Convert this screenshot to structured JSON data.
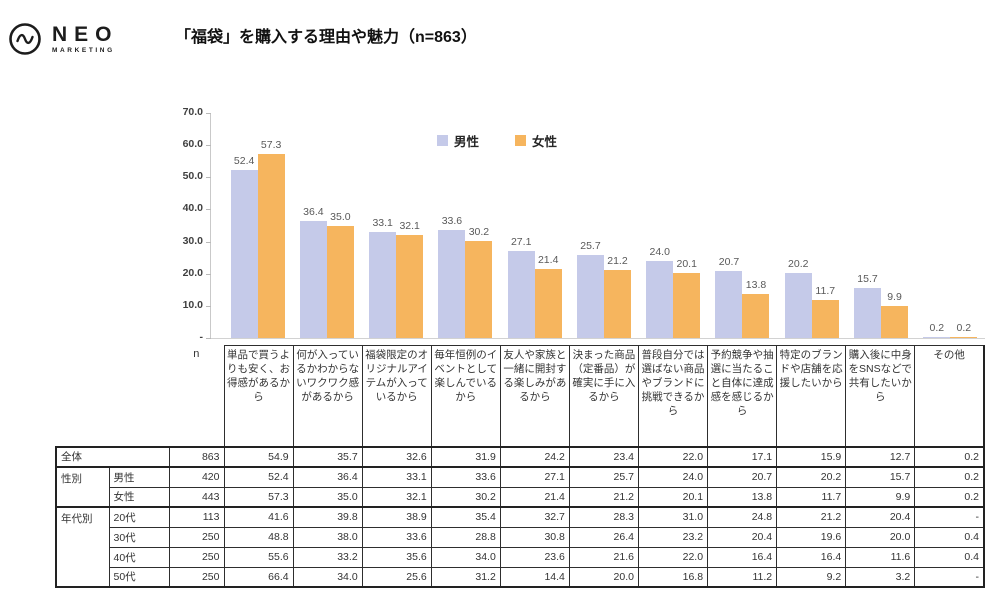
{
  "logo": {
    "name": "NEO",
    "sub": "MARKETING"
  },
  "title": "「福袋」を購入する理由や魅力（n=863）",
  "chart_data": {
    "type": "bar",
    "title": "「福袋」を購入する理由や魅力（n=863）",
    "categories": [
      "単品で買うよりも安く、お得感があるから",
      "何が入っているかわからないワクワク感があるから",
      "福袋限定のオリジナルアイテムが入っているから",
      "毎年恒例のイベントとして楽しんでいるから",
      "友人や家族と一緒に開封する楽しみがあるから",
      "決まった商品（定番品）が確実に手に入るから",
      "普段自分では選ばない商品やブランドに挑戦できるから",
      "予約競争や抽選に当たること自体に達成感を感じるから",
      "特定のブランドや店舗を応援したいから",
      "購入後に中身をSNSなどで共有したいから",
      "その他"
    ],
    "series": [
      {
        "name": "男性",
        "color": "#c5cae9",
        "values": [
          52.4,
          36.4,
          33.1,
          33.6,
          27.1,
          25.7,
          24.0,
          20.7,
          20.2,
          15.7,
          0.2
        ]
      },
      {
        "name": "女性",
        "color": "#f6b55e",
        "values": [
          57.3,
          35.0,
          32.1,
          30.2,
          21.4,
          21.2,
          20.1,
          13.8,
          11.7,
          9.9,
          0.2
        ]
      }
    ],
    "ylim": [
      0,
      70
    ],
    "yticks": [
      {
        "label": "70.0",
        "value": 70
      },
      {
        "label": "60.0",
        "value": 60
      },
      {
        "label": "50.0",
        "value": 50
      },
      {
        "label": "40.0",
        "value": 40
      },
      {
        "label": "30.0",
        "value": 30
      },
      {
        "label": "20.0",
        "value": 20
      },
      {
        "label": "10.0",
        "value": 10
      },
      {
        "label": "-",
        "value": 0
      }
    ],
    "grid": false,
    "legend_position": "top"
  },
  "table": {
    "n_header": "n",
    "col_headers": [
      "単品で買うよりも安く、お得感があるから",
      "何が入っているかわからないワクワク感があるから",
      "福袋限定のオリジナルアイテムが入っているから",
      "毎年恒例のイベントとして楽しんでいるから",
      "友人や家族と一緒に開封する楽しみがあるから",
      "決まった商品（定番品）が確実に手に入るから",
      "普段自分では選ばない商品やブランドに挑戦できるから",
      "予約競争や抽選に当たること自体に達成感を感じるから",
      "特定のブランドや店舗を応援したいから",
      "購入後に中身をSNSなどで共有したいから",
      "その他"
    ],
    "rows": [
      {
        "label": "全体",
        "label_colspan": 2,
        "n": "863",
        "values": [
          "54.9",
          "35.7",
          "32.6",
          "31.9",
          "24.2",
          "23.4",
          "22.0",
          "17.1",
          "15.9",
          "12.7",
          "0.2"
        ]
      },
      {
        "group": "性別",
        "group_rowspan": 2,
        "label": "男性",
        "n": "420",
        "values": [
          "52.4",
          "36.4",
          "33.1",
          "33.6",
          "27.1",
          "25.7",
          "24.0",
          "20.7",
          "20.2",
          "15.7",
          "0.2"
        ]
      },
      {
        "label": "女性",
        "n": "443",
        "values": [
          "57.3",
          "35.0",
          "32.1",
          "30.2",
          "21.4",
          "21.2",
          "20.1",
          "13.8",
          "11.7",
          "9.9",
          "0.2"
        ]
      },
      {
        "group": "年代別",
        "group_rowspan": 4,
        "label": "20代",
        "n": "113",
        "values": [
          "41.6",
          "39.8",
          "38.9",
          "35.4",
          "32.7",
          "28.3",
          "31.0",
          "24.8",
          "21.2",
          "20.4",
          "-"
        ]
      },
      {
        "label": "30代",
        "n": "250",
        "values": [
          "48.8",
          "38.0",
          "33.6",
          "28.8",
          "30.8",
          "26.4",
          "23.2",
          "20.4",
          "19.6",
          "20.0",
          "0.4"
        ]
      },
      {
        "label": "40代",
        "n": "250",
        "values": [
          "55.6",
          "33.2",
          "35.6",
          "34.0",
          "23.6",
          "21.6",
          "22.0",
          "16.4",
          "16.4",
          "11.6",
          "0.4"
        ]
      },
      {
        "label": "50代",
        "n": "250",
        "values": [
          "66.4",
          "34.0",
          "25.6",
          "31.2",
          "14.4",
          "20.0",
          "16.8",
          "11.2",
          "9.2",
          "3.2",
          "-"
        ]
      }
    ]
  }
}
